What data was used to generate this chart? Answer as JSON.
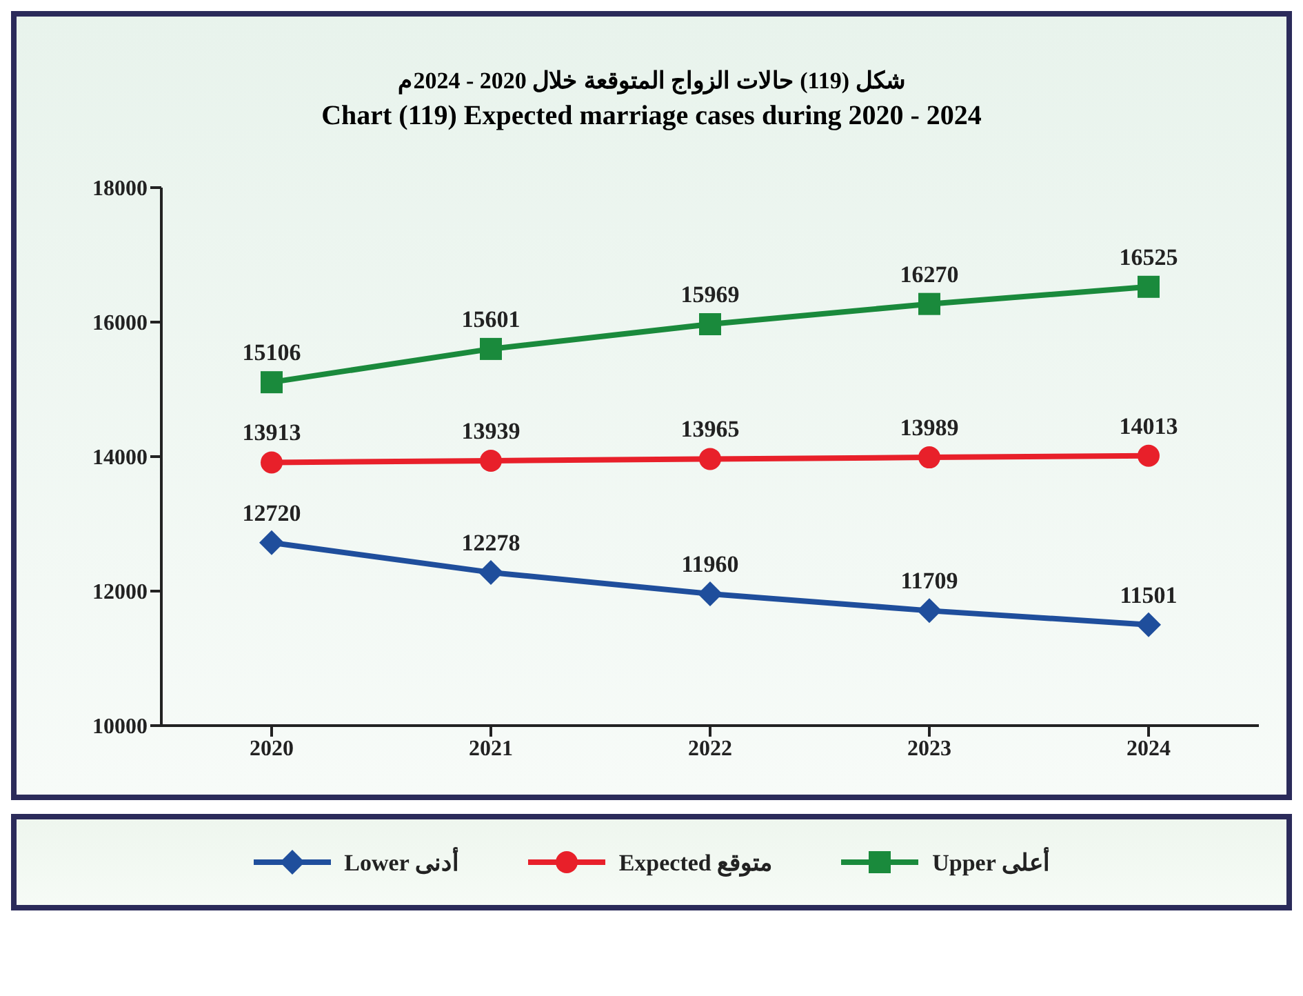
{
  "chart_data": {
    "type": "line",
    "title": "شكل (119) حالات الزواج المتوقعة خلال 2020 - 2024م",
    "subtitle": "Chart (119) Expected marriage cases during 2020 - 2024",
    "categories": [
      "2020",
      "2021",
      "2022",
      "2023",
      "2024"
    ],
    "series": [
      {
        "name": "Lower أدنى",
        "color": "#1f4e9c",
        "marker": "diamond",
        "values": [
          12720,
          12278,
          11960,
          11709,
          11501
        ]
      },
      {
        "name": "Expected متوقع",
        "color": "#e8202a",
        "marker": "circle",
        "values": [
          13913,
          13939,
          13965,
          13989,
          14013
        ]
      },
      {
        "name": "Upper أعلى",
        "color": "#1a8a3c",
        "marker": "square",
        "values": [
          15106,
          15601,
          15969,
          16270,
          16525
        ]
      }
    ],
    "ylim": [
      10000,
      18000
    ],
    "yticks": [
      10000,
      12000,
      14000,
      16000,
      18000
    ],
    "grid": false,
    "legend": "bottom",
    "data_labels": true
  }
}
